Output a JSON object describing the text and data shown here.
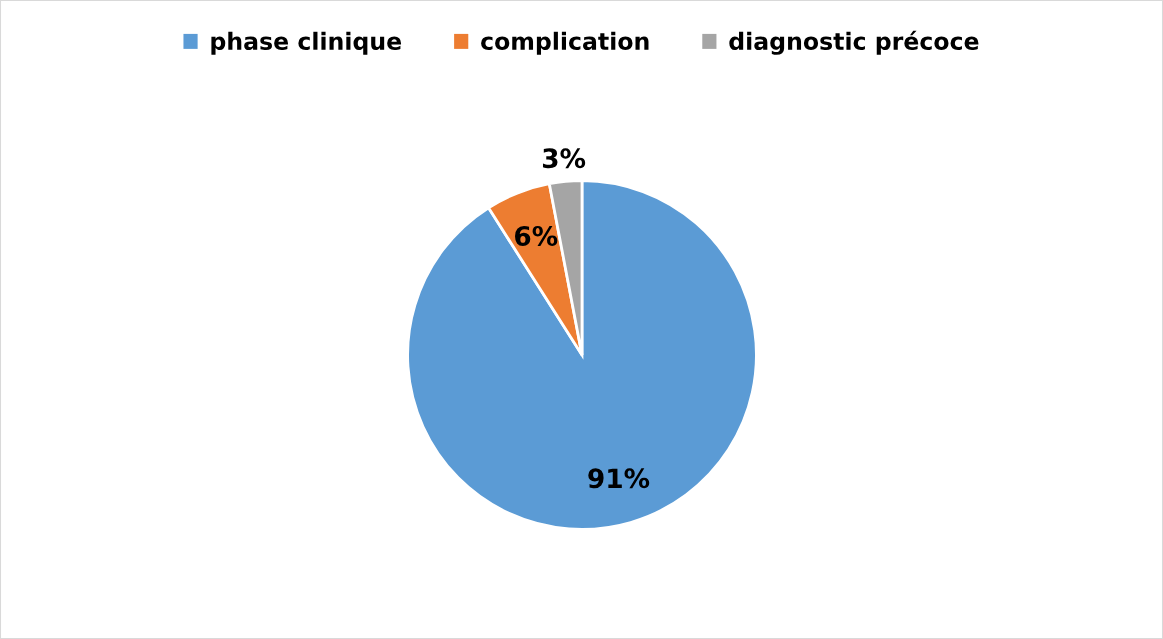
{
  "chart_data": {
    "type": "pie",
    "categories": [
      "phase clinique",
      "complication",
      "diagnostic précoce"
    ],
    "values": [
      91,
      6,
      3
    ],
    "colors": [
      "#5b9bd5",
      "#ed7d31",
      "#a5a5a5"
    ],
    "value_labels": [
      "91%",
      "6%",
      "3%"
    ],
    "legend": "top"
  }
}
